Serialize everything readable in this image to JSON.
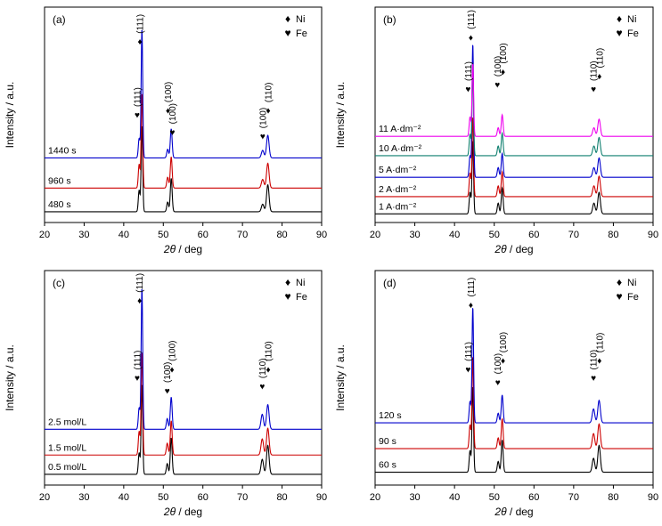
{
  "figure": {
    "x_label_italic": "2θ",
    "x_label_rest": " / deg",
    "y_label": "Intensity / a.u.",
    "x_ticks": [
      20,
      30,
      40,
      50,
      60,
      70,
      80,
      90
    ],
    "legend": [
      {
        "marker": "♦",
        "label": "Ni"
      },
      {
        "marker": "♥",
        "label": "Fe"
      }
    ],
    "colors": {
      "black": "#000000",
      "red": "#cc0000",
      "blue": "#0000cc",
      "teal": "#0f7f6f",
      "magenta": "#ee00ee"
    }
  },
  "chart_data": [
    {
      "type": "line",
      "panel_id": "a",
      "panel": "(a)",
      "x_range": [
        20,
        90
      ],
      "x_axis": "2θ / deg",
      "y_axis": "Intensity / a.u.",
      "series": [
        {
          "name": "480 s",
          "color": "#000000",
          "offset": 0.05,
          "peaks": [
            {
              "x": 43.9,
              "h": 0.1,
              "w": 0.3
            },
            {
              "x": 44.6,
              "h": 0.4,
              "w": 0.28
            },
            {
              "x": 51.1,
              "h": 0.045,
              "w": 0.33
            },
            {
              "x": 52.0,
              "h": 0.155,
              "w": 0.33
            },
            {
              "x": 75.1,
              "h": 0.035,
              "w": 0.45
            },
            {
              "x": 76.4,
              "h": 0.125,
              "w": 0.45
            }
          ]
        },
        {
          "name": "960 s",
          "color": "#cc0000",
          "offset": 0.16,
          "peaks": [
            {
              "x": 43.9,
              "h": 0.11,
              "w": 0.3
            },
            {
              "x": 44.6,
              "h": 0.44,
              "w": 0.28
            },
            {
              "x": 51.1,
              "h": 0.05,
              "w": 0.33
            },
            {
              "x": 52.0,
              "h": 0.145,
              "w": 0.33
            },
            {
              "x": 75.1,
              "h": 0.04,
              "w": 0.45
            },
            {
              "x": 76.4,
              "h": 0.115,
              "w": 0.45
            }
          ]
        },
        {
          "name": "1440 s",
          "color": "#0000cc",
          "offset": 0.3,
          "peaks": [
            {
              "x": 43.9,
              "h": 0.09,
              "w": 0.3
            },
            {
              "x": 44.6,
              "h": 0.6,
              "w": 0.28
            },
            {
              "x": 51.1,
              "h": 0.04,
              "w": 0.33
            },
            {
              "x": 52.0,
              "h": 0.135,
              "w": 0.33
            },
            {
              "x": 75.1,
              "h": 0.035,
              "w": 0.45
            },
            {
              "x": 76.4,
              "h": 0.105,
              "w": 0.45
            }
          ]
        }
      ],
      "annotations": [
        {
          "x": 43.4,
          "y": 0.5,
          "label": "(111)",
          "marker": "♥"
        },
        {
          "x": 44.1,
          "y": 0.84,
          "label": "(111)",
          "marker": "♦"
        },
        {
          "x": 51.2,
          "y": 0.52,
          "label": "(100)",
          "marker": "♦"
        },
        {
          "x": 52.3,
          "y": 0.42,
          "label": "(100)",
          "marker": "♥"
        },
        {
          "x": 75.1,
          "y": 0.4,
          "label": "(100)",
          "marker": "♥"
        },
        {
          "x": 76.5,
          "y": 0.52,
          "label": "(110)",
          "marker": "♦"
        }
      ]
    },
    {
      "type": "line",
      "panel_id": "b",
      "panel": "(b)",
      "x_range": [
        20,
        90
      ],
      "x_axis": "2θ / deg",
      "y_axis": "Intensity / a.u.",
      "series": [
        {
          "name": "1 A·dm⁻²",
          "color": "#000000",
          "offset": 0.04,
          "peaks": [
            {
              "x": 43.9,
              "h": 0.1,
              "w": 0.3
            },
            {
              "x": 44.6,
              "h": 0.34,
              "w": 0.28
            },
            {
              "x": 51.0,
              "h": 0.05,
              "w": 0.33
            },
            {
              "x": 52.0,
              "h": 0.12,
              "w": 0.33
            },
            {
              "x": 75.1,
              "h": 0.05,
              "w": 0.45
            },
            {
              "x": 76.4,
              "h": 0.1,
              "w": 0.45
            }
          ]
        },
        {
          "name": "2 A·dm⁻²",
          "color": "#cc0000",
          "offset": 0.12,
          "peaks": [
            {
              "x": 43.9,
              "h": 0.11,
              "w": 0.3
            },
            {
              "x": 44.6,
              "h": 0.37,
              "w": 0.28
            },
            {
              "x": 51.0,
              "h": 0.05,
              "w": 0.33
            },
            {
              "x": 52.0,
              "h": 0.115,
              "w": 0.33
            },
            {
              "x": 75.1,
              "h": 0.05,
              "w": 0.45
            },
            {
              "x": 76.4,
              "h": 0.095,
              "w": 0.45
            }
          ]
        },
        {
          "name": "5 A·dm⁻²",
          "color": "#0000cc",
          "offset": 0.21,
          "peaks": [
            {
              "x": 43.9,
              "h": 0.1,
              "w": 0.3
            },
            {
              "x": 44.6,
              "h": 0.62,
              "w": 0.28
            },
            {
              "x": 51.0,
              "h": 0.045,
              "w": 0.33
            },
            {
              "x": 52.0,
              "h": 0.11,
              "w": 0.33
            },
            {
              "x": 75.1,
              "h": 0.045,
              "w": 0.45
            },
            {
              "x": 76.4,
              "h": 0.09,
              "w": 0.45
            }
          ]
        },
        {
          "name": "10 A·dm⁻²",
          "color": "#0f7f6f",
          "offset": 0.31,
          "peaks": [
            {
              "x": 43.9,
              "h": 0.1,
              "w": 0.3
            },
            {
              "x": 44.6,
              "h": 0.38,
              "w": 0.28
            },
            {
              "x": 51.0,
              "h": 0.045,
              "w": 0.33
            },
            {
              "x": 52.0,
              "h": 0.105,
              "w": 0.33
            },
            {
              "x": 75.1,
              "h": 0.045,
              "w": 0.45
            },
            {
              "x": 76.4,
              "h": 0.085,
              "w": 0.45
            }
          ]
        },
        {
          "name": "11 A·dm⁻²",
          "color": "#ee00ee",
          "offset": 0.4,
          "peaks": [
            {
              "x": 43.9,
              "h": 0.09,
              "w": 0.3
            },
            {
              "x": 44.6,
              "h": 0.34,
              "w": 0.28
            },
            {
              "x": 51.0,
              "h": 0.04,
              "w": 0.33
            },
            {
              "x": 52.0,
              "h": 0.1,
              "w": 0.33
            },
            {
              "x": 75.1,
              "h": 0.04,
              "w": 0.45
            },
            {
              "x": 76.4,
              "h": 0.08,
              "w": 0.45
            }
          ]
        }
      ],
      "annotations": [
        {
          "x": 43.4,
          "y": 0.62,
          "label": "(111)",
          "marker": "♥"
        },
        {
          "x": 44.1,
          "y": 0.86,
          "label": "(111)",
          "marker": "♦"
        },
        {
          "x": 50.8,
          "y": 0.64,
          "label": "(100)",
          "marker": "♥"
        },
        {
          "x": 52.2,
          "y": 0.7,
          "label": "(100)",
          "marker": "♦"
        },
        {
          "x": 75.0,
          "y": 0.62,
          "label": "(110)",
          "marker": "♥"
        },
        {
          "x": 76.5,
          "y": 0.68,
          "label": "(110)",
          "marker": "♦"
        }
      ]
    },
    {
      "type": "line",
      "panel_id": "c",
      "panel": "(c)",
      "x_range": [
        20,
        90
      ],
      "x_axis": "2θ / deg",
      "y_axis": "Intensity / a.u.",
      "series": [
        {
          "name": "0.5 mol/L",
          "color": "#000000",
          "offset": 0.05,
          "peaks": [
            {
              "x": 43.9,
              "h": 0.1,
              "w": 0.3
            },
            {
              "x": 44.6,
              "h": 0.42,
              "w": 0.28
            },
            {
              "x": 51.0,
              "h": 0.05,
              "w": 0.33
            },
            {
              "x": 52.0,
              "h": 0.17,
              "w": 0.33
            },
            {
              "x": 75.0,
              "h": 0.07,
              "w": 0.45
            },
            {
              "x": 76.4,
              "h": 0.135,
              "w": 0.45
            }
          ]
        },
        {
          "name": "1.5 mol/L",
          "color": "#cc0000",
          "offset": 0.14,
          "peaks": [
            {
              "x": 43.9,
              "h": 0.11,
              "w": 0.3
            },
            {
              "x": 44.6,
              "h": 0.48,
              "w": 0.28
            },
            {
              "x": 51.0,
              "h": 0.055,
              "w": 0.33
            },
            {
              "x": 52.0,
              "h": 0.16,
              "w": 0.33
            },
            {
              "x": 75.0,
              "h": 0.075,
              "w": 0.45
            },
            {
              "x": 76.4,
              "h": 0.125,
              "w": 0.45
            }
          ]
        },
        {
          "name": "2.5 mol/L",
          "color": "#0000cc",
          "offset": 0.26,
          "peaks": [
            {
              "x": 43.9,
              "h": 0.1,
              "w": 0.3
            },
            {
              "x": 44.6,
              "h": 0.66,
              "w": 0.28
            },
            {
              "x": 51.0,
              "h": 0.05,
              "w": 0.33
            },
            {
              "x": 52.0,
              "h": 0.15,
              "w": 0.33
            },
            {
              "x": 75.0,
              "h": 0.07,
              "w": 0.45
            },
            {
              "x": 76.4,
              "h": 0.115,
              "w": 0.45
            }
          ]
        }
      ],
      "annotations": [
        {
          "x": 43.4,
          "y": 0.5,
          "label": "(111)",
          "marker": "♥"
        },
        {
          "x": 44.0,
          "y": 0.86,
          "label": "(111)",
          "marker": "♦"
        },
        {
          "x": 51.0,
          "y": 0.44,
          "label": "(100)",
          "marker": "♥"
        },
        {
          "x": 52.2,
          "y": 0.54,
          "label": "(100)",
          "marker": "♦"
        },
        {
          "x": 75.0,
          "y": 0.46,
          "label": "(110)",
          "marker": "♥"
        },
        {
          "x": 76.5,
          "y": 0.54,
          "label": "(110)",
          "marker": "♦"
        }
      ]
    },
    {
      "type": "line",
      "panel_id": "d",
      "panel": "(d)",
      "x_range": [
        20,
        90
      ],
      "x_axis": "2θ / deg",
      "y_axis": "Intensity / a.u.",
      "series": [
        {
          "name": "60 s",
          "color": "#000000",
          "offset": 0.06,
          "peaks": [
            {
              "x": 43.9,
              "h": 0.1,
              "w": 0.3
            },
            {
              "x": 44.6,
              "h": 0.4,
              "w": 0.28
            },
            {
              "x": 51.0,
              "h": 0.05,
              "w": 0.33
            },
            {
              "x": 52.0,
              "h": 0.15,
              "w": 0.33
            },
            {
              "x": 75.0,
              "h": 0.065,
              "w": 0.45
            },
            {
              "x": 76.4,
              "h": 0.125,
              "w": 0.45
            }
          ]
        },
        {
          "name": "90 s",
          "color": "#cc0000",
          "offset": 0.17,
          "peaks": [
            {
              "x": 43.9,
              "h": 0.11,
              "w": 0.3
            },
            {
              "x": 44.6,
              "h": 0.43,
              "w": 0.28
            },
            {
              "x": 51.0,
              "h": 0.05,
              "w": 0.33
            },
            {
              "x": 52.0,
              "h": 0.14,
              "w": 0.33
            },
            {
              "x": 75.0,
              "h": 0.07,
              "w": 0.45
            },
            {
              "x": 76.4,
              "h": 0.115,
              "w": 0.45
            }
          ]
        },
        {
          "name": "120 s",
          "color": "#0000cc",
          "offset": 0.29,
          "peaks": [
            {
              "x": 43.9,
              "h": 0.1,
              "w": 0.3
            },
            {
              "x": 44.6,
              "h": 0.54,
              "w": 0.28
            },
            {
              "x": 51.0,
              "h": 0.045,
              "w": 0.33
            },
            {
              "x": 52.0,
              "h": 0.13,
              "w": 0.33
            },
            {
              "x": 75.0,
              "h": 0.065,
              "w": 0.45
            },
            {
              "x": 76.4,
              "h": 0.105,
              "w": 0.45
            }
          ]
        }
      ],
      "annotations": [
        {
          "x": 43.4,
          "y": 0.54,
          "label": "(111)",
          "marker": "♥"
        },
        {
          "x": 44.1,
          "y": 0.84,
          "label": "(111)",
          "marker": "♦"
        },
        {
          "x": 50.9,
          "y": 0.48,
          "label": "(100)",
          "marker": "♥"
        },
        {
          "x": 52.2,
          "y": 0.58,
          "label": "(100)",
          "marker": "♦"
        },
        {
          "x": 75.0,
          "y": 0.5,
          "label": "(110)",
          "marker": "♥"
        },
        {
          "x": 76.5,
          "y": 0.58,
          "label": "(110)",
          "marker": "♦"
        }
      ]
    }
  ]
}
